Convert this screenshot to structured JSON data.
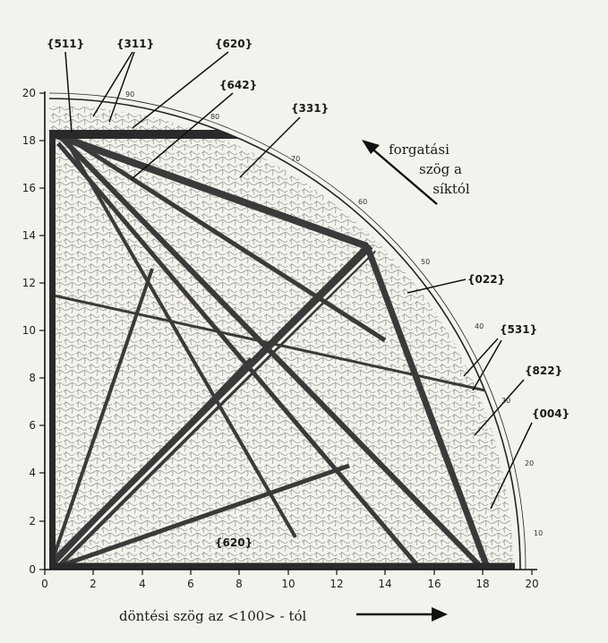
{
  "x_axis": {
    "ticks": [
      "0",
      "2",
      "4",
      "6",
      "8",
      "10",
      "12",
      "14",
      "16",
      "18",
      "20"
    ],
    "title": "döntési szög az <100> - tól"
  },
  "y_axis": {
    "ticks": [
      "0",
      "2",
      "4",
      "6",
      "8",
      "10",
      "12",
      "14",
      "16",
      "18",
      "20"
    ]
  },
  "rotation_label": [
    "forgatási",
    "szög a",
    "síktól"
  ],
  "arc_scale": [
    "10",
    "20",
    "30",
    "40",
    "50",
    "60",
    "70",
    "80",
    "90"
  ],
  "planes": {
    "p511": "{511}",
    "p311": "{311}",
    "p620_top": "{620}",
    "p642": "{642}",
    "p331": "{331}",
    "p022": "{022}",
    "p531": "{531}",
    "p822": "{822}",
    "p004": "{004}",
    "p620_bottom": "{620}"
  },
  "colors": {
    "ink": "#1b1b1b",
    "paper": "#f4f2ec",
    "band": "#3a3a3a"
  }
}
